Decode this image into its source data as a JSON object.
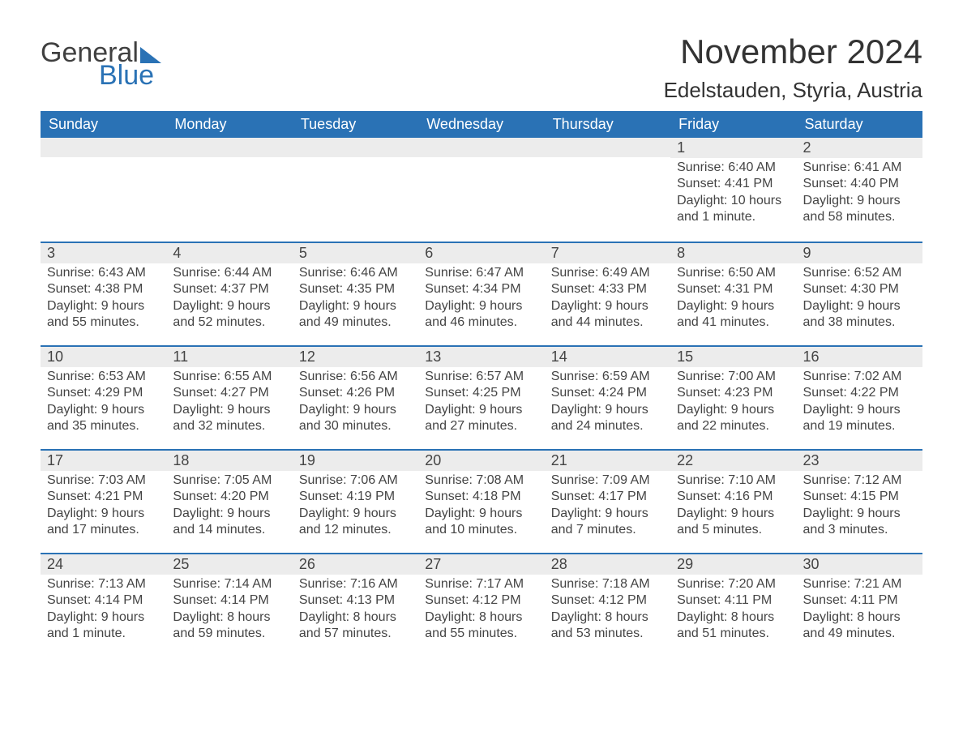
{
  "brand": {
    "part1": "General",
    "part2": "Blue"
  },
  "title": "November 2024",
  "location": "Edelstauden, Styria, Austria",
  "colors": {
    "header_bg": "#2a72b5",
    "header_text": "#ffffff",
    "daybar_bg": "#ececec",
    "daybar_border": "#2a72b5",
    "body_bg": "#ffffff",
    "text": "#444444"
  },
  "weekdays": [
    "Sunday",
    "Monday",
    "Tuesday",
    "Wednesday",
    "Thursday",
    "Friday",
    "Saturday"
  ],
  "weeks": [
    [
      {
        "empty": true
      },
      {
        "empty": true
      },
      {
        "empty": true
      },
      {
        "empty": true
      },
      {
        "empty": true
      },
      {
        "day": "1",
        "sunrise": "Sunrise: 6:40 AM",
        "sunset": "Sunset: 4:41 PM",
        "daylight": "Daylight: 10 hours and 1 minute."
      },
      {
        "day": "2",
        "sunrise": "Sunrise: 6:41 AM",
        "sunset": "Sunset: 4:40 PM",
        "daylight": "Daylight: 9 hours and 58 minutes."
      }
    ],
    [
      {
        "day": "3",
        "sunrise": "Sunrise: 6:43 AM",
        "sunset": "Sunset: 4:38 PM",
        "daylight": "Daylight: 9 hours and 55 minutes."
      },
      {
        "day": "4",
        "sunrise": "Sunrise: 6:44 AM",
        "sunset": "Sunset: 4:37 PM",
        "daylight": "Daylight: 9 hours and 52 minutes."
      },
      {
        "day": "5",
        "sunrise": "Sunrise: 6:46 AM",
        "sunset": "Sunset: 4:35 PM",
        "daylight": "Daylight: 9 hours and 49 minutes."
      },
      {
        "day": "6",
        "sunrise": "Sunrise: 6:47 AM",
        "sunset": "Sunset: 4:34 PM",
        "daylight": "Daylight: 9 hours and 46 minutes."
      },
      {
        "day": "7",
        "sunrise": "Sunrise: 6:49 AM",
        "sunset": "Sunset: 4:33 PM",
        "daylight": "Daylight: 9 hours and 44 minutes."
      },
      {
        "day": "8",
        "sunrise": "Sunrise: 6:50 AM",
        "sunset": "Sunset: 4:31 PM",
        "daylight": "Daylight: 9 hours and 41 minutes."
      },
      {
        "day": "9",
        "sunrise": "Sunrise: 6:52 AM",
        "sunset": "Sunset: 4:30 PM",
        "daylight": "Daylight: 9 hours and 38 minutes."
      }
    ],
    [
      {
        "day": "10",
        "sunrise": "Sunrise: 6:53 AM",
        "sunset": "Sunset: 4:29 PM",
        "daylight": "Daylight: 9 hours and 35 minutes."
      },
      {
        "day": "11",
        "sunrise": "Sunrise: 6:55 AM",
        "sunset": "Sunset: 4:27 PM",
        "daylight": "Daylight: 9 hours and 32 minutes."
      },
      {
        "day": "12",
        "sunrise": "Sunrise: 6:56 AM",
        "sunset": "Sunset: 4:26 PM",
        "daylight": "Daylight: 9 hours and 30 minutes."
      },
      {
        "day": "13",
        "sunrise": "Sunrise: 6:57 AM",
        "sunset": "Sunset: 4:25 PM",
        "daylight": "Daylight: 9 hours and 27 minutes."
      },
      {
        "day": "14",
        "sunrise": "Sunrise: 6:59 AM",
        "sunset": "Sunset: 4:24 PM",
        "daylight": "Daylight: 9 hours and 24 minutes."
      },
      {
        "day": "15",
        "sunrise": "Sunrise: 7:00 AM",
        "sunset": "Sunset: 4:23 PM",
        "daylight": "Daylight: 9 hours and 22 minutes."
      },
      {
        "day": "16",
        "sunrise": "Sunrise: 7:02 AM",
        "sunset": "Sunset: 4:22 PM",
        "daylight": "Daylight: 9 hours and 19 minutes."
      }
    ],
    [
      {
        "day": "17",
        "sunrise": "Sunrise: 7:03 AM",
        "sunset": "Sunset: 4:21 PM",
        "daylight": "Daylight: 9 hours and 17 minutes."
      },
      {
        "day": "18",
        "sunrise": "Sunrise: 7:05 AM",
        "sunset": "Sunset: 4:20 PM",
        "daylight": "Daylight: 9 hours and 14 minutes."
      },
      {
        "day": "19",
        "sunrise": "Sunrise: 7:06 AM",
        "sunset": "Sunset: 4:19 PM",
        "daylight": "Daylight: 9 hours and 12 minutes."
      },
      {
        "day": "20",
        "sunrise": "Sunrise: 7:08 AM",
        "sunset": "Sunset: 4:18 PM",
        "daylight": "Daylight: 9 hours and 10 minutes."
      },
      {
        "day": "21",
        "sunrise": "Sunrise: 7:09 AM",
        "sunset": "Sunset: 4:17 PM",
        "daylight": "Daylight: 9 hours and 7 minutes."
      },
      {
        "day": "22",
        "sunrise": "Sunrise: 7:10 AM",
        "sunset": "Sunset: 4:16 PM",
        "daylight": "Daylight: 9 hours and 5 minutes."
      },
      {
        "day": "23",
        "sunrise": "Sunrise: 7:12 AM",
        "sunset": "Sunset: 4:15 PM",
        "daylight": "Daylight: 9 hours and 3 minutes."
      }
    ],
    [
      {
        "day": "24",
        "sunrise": "Sunrise: 7:13 AM",
        "sunset": "Sunset: 4:14 PM",
        "daylight": "Daylight: 9 hours and 1 minute."
      },
      {
        "day": "25",
        "sunrise": "Sunrise: 7:14 AM",
        "sunset": "Sunset: 4:14 PM",
        "daylight": "Daylight: 8 hours and 59 minutes."
      },
      {
        "day": "26",
        "sunrise": "Sunrise: 7:16 AM",
        "sunset": "Sunset: 4:13 PM",
        "daylight": "Daylight: 8 hours and 57 minutes."
      },
      {
        "day": "27",
        "sunrise": "Sunrise: 7:17 AM",
        "sunset": "Sunset: 4:12 PM",
        "daylight": "Daylight: 8 hours and 55 minutes."
      },
      {
        "day": "28",
        "sunrise": "Sunrise: 7:18 AM",
        "sunset": "Sunset: 4:12 PM",
        "daylight": "Daylight: 8 hours and 53 minutes."
      },
      {
        "day": "29",
        "sunrise": "Sunrise: 7:20 AM",
        "sunset": "Sunset: 4:11 PM",
        "daylight": "Daylight: 8 hours and 51 minutes."
      },
      {
        "day": "30",
        "sunrise": "Sunrise: 7:21 AM",
        "sunset": "Sunset: 4:11 PM",
        "daylight": "Daylight: 8 hours and 49 minutes."
      }
    ]
  ]
}
